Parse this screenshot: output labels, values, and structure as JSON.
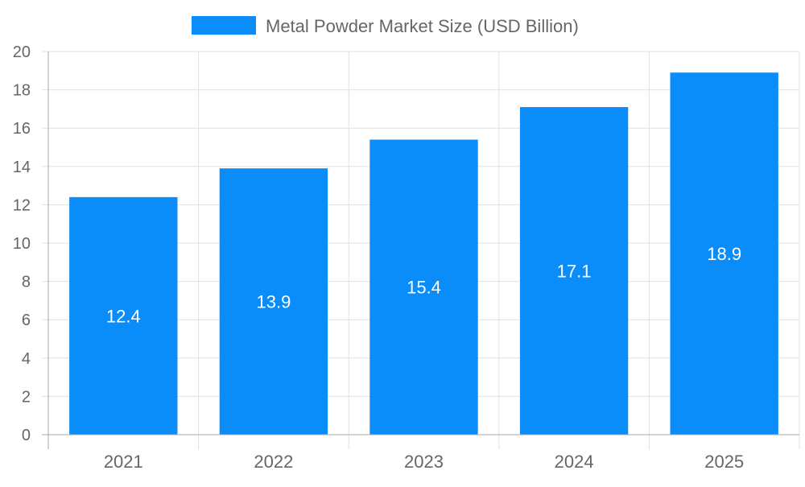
{
  "chart_data": {
    "type": "bar",
    "categories": [
      "2021",
      "2022",
      "2023",
      "2024",
      "2025"
    ],
    "series": [
      {
        "name": "Metal Powder Market Size (USD Billion)",
        "values": [
          12.4,
          13.9,
          15.4,
          17.1,
          18.9
        ],
        "color": "#0a8cf9"
      }
    ],
    "data_labels": [
      "12.4",
      "13.9",
      "15.4",
      "17.1",
      "18.9"
    ],
    "title": "",
    "xlabel": "",
    "ylabel": "",
    "ylim": [
      0,
      20
    ],
    "yticks": [
      "0",
      "2",
      "4",
      "6",
      "8",
      "10",
      "12",
      "14",
      "16",
      "18",
      "20"
    ],
    "grid": true,
    "legend_position": "top"
  }
}
